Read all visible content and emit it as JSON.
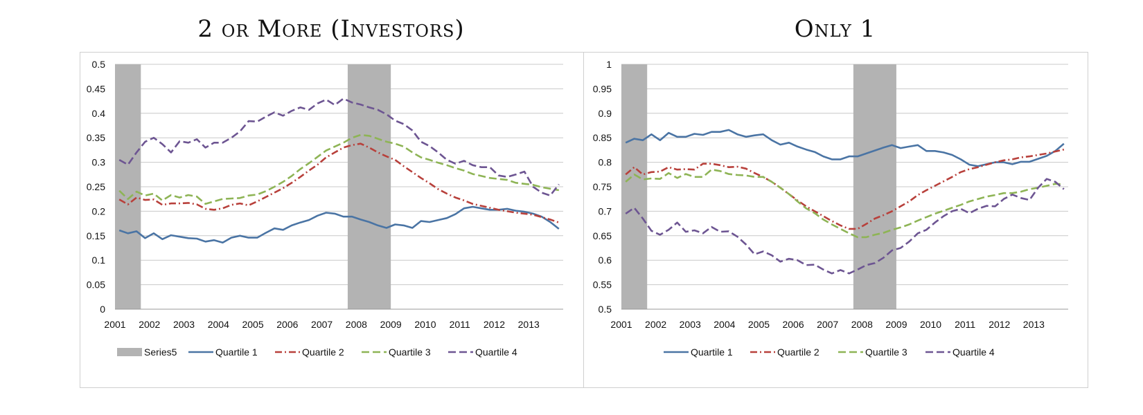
{
  "chart_data": [
    {
      "type": "line",
      "title": "2 or More (Investors)",
      "xlabel": "",
      "ylabel": "",
      "x_ticks": [
        "2001",
        "2002",
        "2003",
        "2004",
        "2005",
        "2006",
        "2007",
        "2008",
        "2009",
        "2010",
        "2011",
        "2012",
        "2013"
      ],
      "x_range": [
        2001,
        2014
      ],
      "ylim": [
        0,
        0.5
      ],
      "y_ticks": [
        0,
        0.05,
        0.1,
        0.15,
        0.2,
        0.25,
        0.3,
        0.35,
        0.4,
        0.45,
        0.5
      ],
      "y_tick_labels": [
        "0",
        "0.05",
        "0.1",
        "0.15",
        "0.2",
        "0.25",
        "0.3",
        "0.35",
        "0.4",
        "0.45",
        "0.5"
      ],
      "grid": true,
      "legend_position": "bottom",
      "shaded_periods": [
        [
          2001.0,
          2001.75
        ],
        [
          2007.75,
          2009.0
        ]
      ],
      "legend": [
        {
          "name": "Series5",
          "color": "#b3b3b3",
          "style": "bar"
        },
        {
          "name": "Quartile 1",
          "color": "#4a74a4",
          "style": "solid"
        },
        {
          "name": "Quartile 2",
          "color": "#b8403b",
          "style": "dashdot"
        },
        {
          "name": "Quartile 3",
          "color": "#8eb455",
          "style": "dash"
        },
        {
          "name": "Quartile 4",
          "color": "#6d5592",
          "style": "dash"
        }
      ],
      "series": [
        {
          "name": "Quartile 1",
          "color": "#4a74a4",
          "style": "solid",
          "values": [
            0.161,
            0.155,
            0.159,
            0.145,
            0.155,
            0.143,
            0.151,
            0.148,
            0.145,
            0.144,
            0.138,
            0.141,
            0.136,
            0.146,
            0.15,
            0.146,
            0.146,
            0.156,
            0.165,
            0.162,
            0.171,
            0.177,
            0.182,
            0.191,
            0.197,
            0.195,
            0.189,
            0.189,
            0.183,
            0.178,
            0.171,
            0.166,
            0.173,
            0.171,
            0.166,
            0.18,
            0.178,
            0.182,
            0.186,
            0.194,
            0.206,
            0.209,
            0.206,
            0.203,
            0.203,
            0.205,
            0.201,
            0.199,
            0.195,
            0.189,
            0.178,
            0.164
          ]
        },
        {
          "name": "Quartile 2",
          "color": "#b8403b",
          "style": "dashdot",
          "values": [
            0.224,
            0.214,
            0.228,
            0.223,
            0.224,
            0.213,
            0.216,
            0.216,
            0.217,
            0.214,
            0.205,
            0.203,
            0.206,
            0.213,
            0.216,
            0.212,
            0.22,
            0.229,
            0.238,
            0.247,
            0.258,
            0.27,
            0.283,
            0.295,
            0.31,
            0.32,
            0.33,
            0.335,
            0.338,
            0.33,
            0.32,
            0.312,
            0.305,
            0.292,
            0.28,
            0.268,
            0.257,
            0.245,
            0.236,
            0.228,
            0.222,
            0.215,
            0.211,
            0.207,
            0.203,
            0.2,
            0.197,
            0.195,
            0.193,
            0.188,
            0.183,
            0.177
          ]
        },
        {
          "name": "Quartile 3",
          "color": "#8eb455",
          "style": "dash",
          "values": [
            0.242,
            0.225,
            0.24,
            0.232,
            0.236,
            0.222,
            0.233,
            0.228,
            0.233,
            0.23,
            0.215,
            0.22,
            0.225,
            0.226,
            0.227,
            0.232,
            0.234,
            0.241,
            0.25,
            0.26,
            0.272,
            0.286,
            0.298,
            0.311,
            0.324,
            0.332,
            0.34,
            0.35,
            0.356,
            0.354,
            0.348,
            0.342,
            0.338,
            0.332,
            0.32,
            0.31,
            0.305,
            0.299,
            0.294,
            0.288,
            0.283,
            0.276,
            0.272,
            0.268,
            0.266,
            0.264,
            0.258,
            0.256,
            0.254,
            0.249,
            0.246,
            0.243
          ]
        },
        {
          "name": "Quartile 4",
          "color": "#6d5592",
          "style": "dash",
          "values": [
            0.305,
            0.295,
            0.32,
            0.342,
            0.35,
            0.337,
            0.32,
            0.343,
            0.34,
            0.347,
            0.33,
            0.34,
            0.34,
            0.35,
            0.363,
            0.384,
            0.383,
            0.393,
            0.402,
            0.395,
            0.405,
            0.412,
            0.407,
            0.42,
            0.428,
            0.417,
            0.43,
            0.422,
            0.418,
            0.412,
            0.407,
            0.398,
            0.385,
            0.378,
            0.365,
            0.342,
            0.333,
            0.32,
            0.305,
            0.297,
            0.303,
            0.294,
            0.29,
            0.29,
            0.273,
            0.27,
            0.275,
            0.281,
            0.25,
            0.238,
            0.232,
            0.255
          ]
        }
      ]
    },
    {
      "type": "line",
      "title": "Only 1",
      "xlabel": "",
      "ylabel": "",
      "x_ticks": [
        "2001",
        "2002",
        "2003",
        "2004",
        "2005",
        "2006",
        "2007",
        "2008",
        "2009",
        "2010",
        "2011",
        "2012",
        "2013"
      ],
      "x_range": [
        2001,
        2014
      ],
      "ylim": [
        0.5,
        1
      ],
      "y_ticks": [
        0.5,
        0.55,
        0.6,
        0.65,
        0.7,
        0.75,
        0.8,
        0.85,
        0.9,
        0.95,
        1
      ],
      "y_tick_labels": [
        "0.5",
        "0.55",
        "0.6",
        "0.65",
        "0.7",
        "0.75",
        "0.8",
        "0.85",
        "0.9",
        "0.95",
        "1"
      ],
      "grid": true,
      "legend_position": "bottom",
      "shaded_periods": [
        [
          2001.0,
          2001.75
        ],
        [
          2007.75,
          2009.0
        ]
      ],
      "legend": [
        {
          "name": "Quartile 1",
          "color": "#4a74a4",
          "style": "solid"
        },
        {
          "name": "Quartile 2",
          "color": "#b8403b",
          "style": "dashdot"
        },
        {
          "name": "Quartile 3",
          "color": "#8eb455",
          "style": "dash"
        },
        {
          "name": "Quartile 4",
          "color": "#6d5592",
          "style": "dash"
        }
      ],
      "series": [
        {
          "name": "Quartile 1",
          "color": "#4a74a4",
          "style": "solid",
          "values": [
            0.84,
            0.848,
            0.845,
            0.857,
            0.845,
            0.86,
            0.852,
            0.852,
            0.858,
            0.856,
            0.862,
            0.862,
            0.866,
            0.857,
            0.852,
            0.855,
            0.857,
            0.845,
            0.836,
            0.84,
            0.832,
            0.826,
            0.821,
            0.812,
            0.806,
            0.806,
            0.812,
            0.812,
            0.818,
            0.824,
            0.83,
            0.835,
            0.829,
            0.832,
            0.835,
            0.823,
            0.823,
            0.82,
            0.815,
            0.806,
            0.795,
            0.792,
            0.796,
            0.8,
            0.8,
            0.796,
            0.801,
            0.801,
            0.807,
            0.813,
            0.823,
            0.838
          ]
        },
        {
          "name": "Quartile 2",
          "color": "#b8403b",
          "style": "dashdot",
          "values": [
            0.775,
            0.79,
            0.775,
            0.78,
            0.781,
            0.79,
            0.785,
            0.786,
            0.785,
            0.797,
            0.797,
            0.794,
            0.79,
            0.791,
            0.787,
            0.778,
            0.77,
            0.76,
            0.748,
            0.735,
            0.722,
            0.71,
            0.7,
            0.69,
            0.68,
            0.671,
            0.664,
            0.664,
            0.674,
            0.685,
            0.692,
            0.7,
            0.71,
            0.72,
            0.733,
            0.743,
            0.752,
            0.761,
            0.77,
            0.78,
            0.786,
            0.79,
            0.795,
            0.8,
            0.804,
            0.806,
            0.81,
            0.812,
            0.815,
            0.818,
            0.822,
            0.826
          ]
        },
        {
          "name": "Quartile 3",
          "color": "#8eb455",
          "style": "dash",
          "values": [
            0.76,
            0.775,
            0.765,
            0.767,
            0.766,
            0.778,
            0.768,
            0.776,
            0.77,
            0.77,
            0.785,
            0.782,
            0.776,
            0.774,
            0.773,
            0.77,
            0.77,
            0.76,
            0.748,
            0.735,
            0.72,
            0.706,
            0.696,
            0.683,
            0.673,
            0.664,
            0.655,
            0.647,
            0.647,
            0.652,
            0.656,
            0.662,
            0.667,
            0.673,
            0.681,
            0.688,
            0.695,
            0.701,
            0.707,
            0.713,
            0.72,
            0.725,
            0.73,
            0.733,
            0.737,
            0.737,
            0.74,
            0.745,
            0.748,
            0.752,
            0.756,
            0.755
          ]
        },
        {
          "name": "Quartile 4",
          "color": "#6d5592",
          "style": "dash",
          "values": [
            0.695,
            0.707,
            0.685,
            0.66,
            0.652,
            0.662,
            0.677,
            0.658,
            0.661,
            0.655,
            0.668,
            0.658,
            0.659,
            0.648,
            0.632,
            0.612,
            0.618,
            0.61,
            0.597,
            0.603,
            0.6,
            0.59,
            0.591,
            0.581,
            0.573,
            0.58,
            0.573,
            0.581,
            0.59,
            0.594,
            0.605,
            0.62,
            0.625,
            0.638,
            0.655,
            0.662,
            0.677,
            0.69,
            0.7,
            0.705,
            0.696,
            0.705,
            0.711,
            0.71,
            0.725,
            0.734,
            0.727,
            0.723,
            0.748,
            0.766,
            0.76,
            0.745
          ]
        }
      ]
    }
  ]
}
